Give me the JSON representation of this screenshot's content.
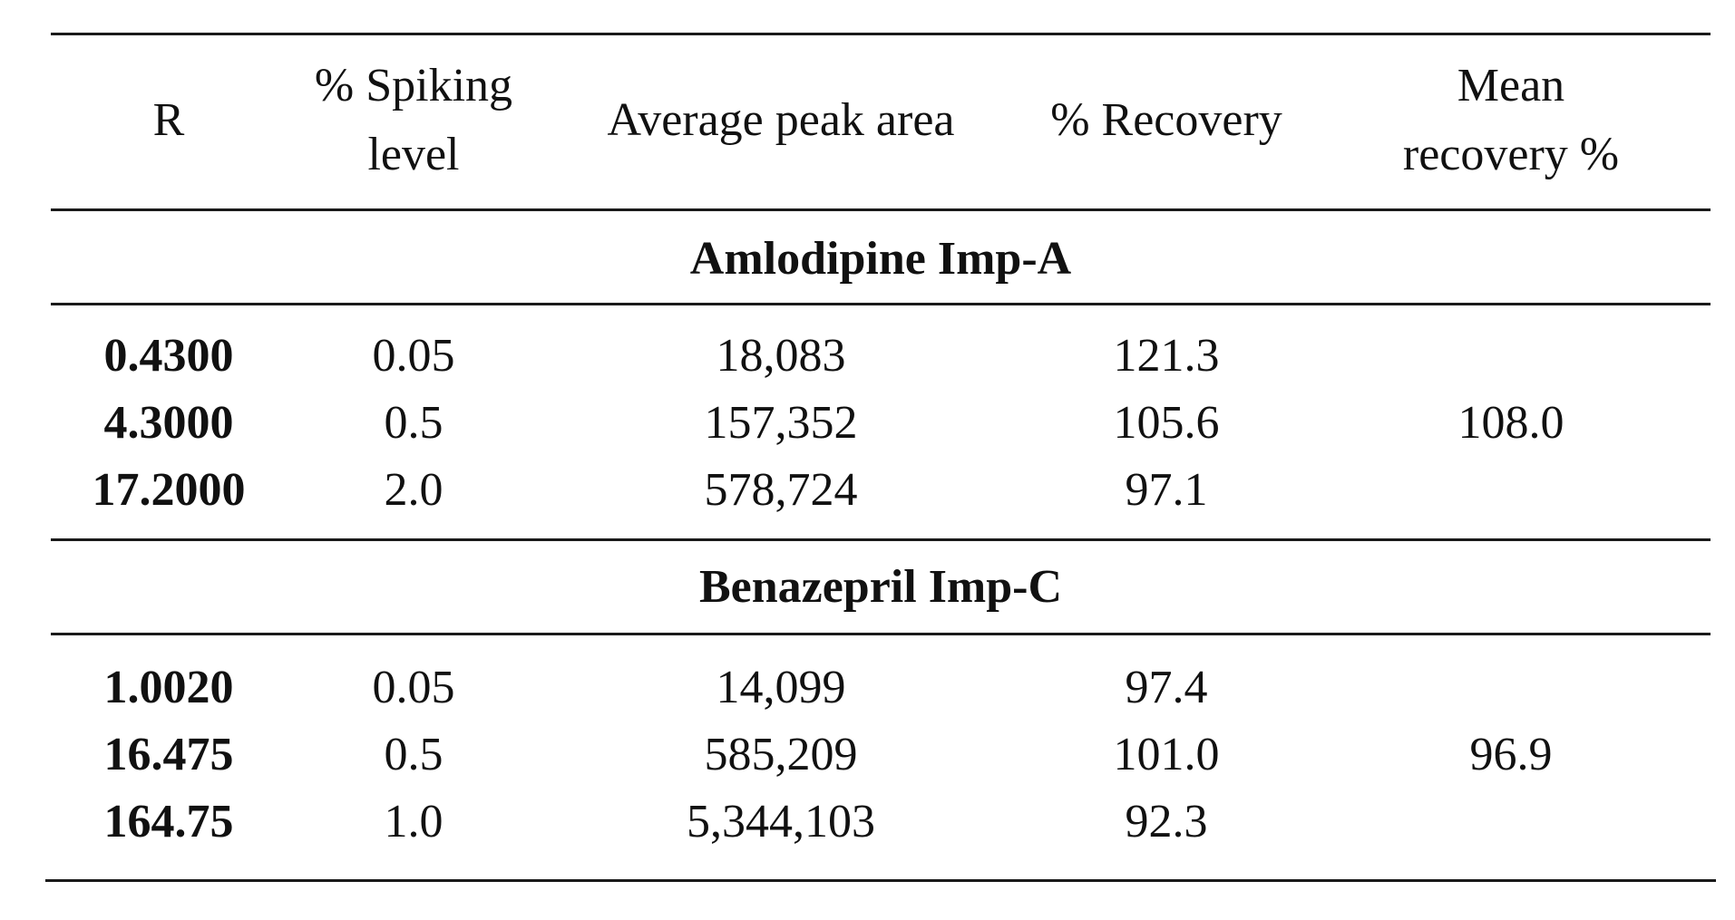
{
  "table": {
    "headers": {
      "r": "R",
      "spiking_line1": "% Spiking",
      "spiking_line2": "level",
      "avg_peak_area": "Average peak area",
      "recovery": "% Recovery",
      "mean_line1": "Mean",
      "mean_line2": "recovery %"
    },
    "sections": [
      {
        "title": "Amlodipine Imp-A",
        "rows": [
          {
            "r": "0.4300",
            "spiking": "0.05",
            "area": "18,083",
            "recovery": "121.3"
          },
          {
            "r": "4.3000",
            "spiking": "0.5",
            "area": "157,352",
            "recovery": "105.6"
          },
          {
            "r": "17.2000",
            "spiking": "2.0",
            "area": "578,724",
            "recovery": "97.1"
          }
        ],
        "mean_recovery": "108.0"
      },
      {
        "title": "Benazepril Imp-C",
        "rows": [
          {
            "r": "1.0020",
            "spiking": "0.05",
            "area": "14,099",
            "recovery": "97.4"
          },
          {
            "r": "16.475",
            "spiking": "0.5",
            "area": "585,209",
            "recovery": "101.0"
          },
          {
            "r": "164.75",
            "spiking": "1.0",
            "area": "5,344,103",
            "recovery": "92.3"
          }
        ],
        "mean_recovery": "96.9"
      }
    ]
  }
}
